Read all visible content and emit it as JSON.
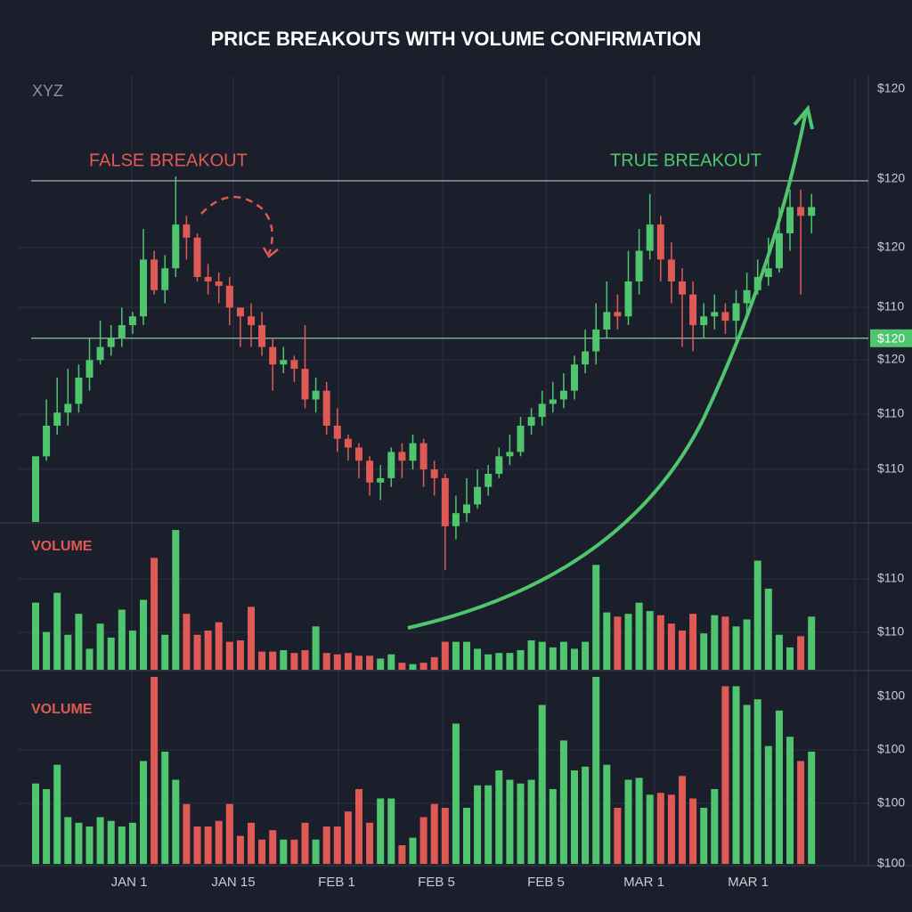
{
  "chart_data": {
    "type": "candlestick",
    "title": "PRICE BREAKOUTS WITH VOLUME CONFIRMATION",
    "symbol": "XYZ",
    "annotations": [
      "FALSE BREAKOUT",
      "TRUE BREAKOUT"
    ],
    "x_labels": [
      "JAN 1",
      "JAN 15",
      "FEB 1",
      "FEB 5",
      "FEB 5",
      "MAR 1",
      "MAR 1"
    ],
    "y_axis_labels": [
      "$120",
      "$120",
      "$120",
      "$110",
      "$120",
      "$110",
      "$110",
      "$110",
      "$110",
      "$100",
      "$100",
      "$100",
      "$100"
    ],
    "levels": [
      78,
      42
    ],
    "level_label": "$120",
    "up_color": "#4fc56e",
    "down_color": "#e05a55",
    "ylim": [
      -11,
      100
    ],
    "open": [
      0,
      15,
      22,
      25,
      27,
      33,
      37,
      40,
      42,
      45,
      47,
      60,
      53,
      58,
      68,
      65,
      56,
      55,
      54,
      49,
      47,
      45,
      40,
      36,
      37,
      35,
      28,
      30,
      22,
      19,
      17,
      14,
      9,
      10,
      16,
      14,
      18,
      12,
      10,
      -1,
      2,
      4,
      8,
      11,
      15,
      16,
      22,
      24,
      27,
      28,
      30,
      36,
      39,
      44,
      48,
      47,
      55,
      62,
      68,
      60,
      55,
      52,
      45,
      47,
      48,
      46,
      50,
      53,
      56,
      58,
      66,
      72,
      70
    ],
    "high": [
      15,
      28,
      33,
      35,
      36,
      42,
      46,
      45,
      49,
      48,
      67,
      62,
      61,
      79,
      70,
      66,
      59,
      57,
      56,
      48,
      50,
      48,
      42,
      40,
      38,
      45,
      33,
      32,
      26,
      20,
      18,
      15,
      13,
      17,
      18,
      20,
      19,
      14,
      11,
      6,
      10,
      12,
      13,
      17,
      20,
      24,
      26,
      30,
      32,
      34,
      38,
      44,
      50,
      55,
      52,
      62,
      67,
      75,
      70,
      64,
      58,
      55,
      50,
      52,
      50,
      53,
      57,
      60,
      65,
      72,
      76,
      76,
      75
    ],
    "low": [
      0,
      14,
      20,
      22,
      25,
      30,
      36,
      38,
      40,
      43,
      45,
      52,
      50,
      56,
      60,
      55,
      52,
      50,
      45,
      40,
      40,
      38,
      30,
      34,
      32,
      26,
      25,
      20,
      16,
      14,
      10,
      6,
      5,
      8,
      10,
      12,
      8,
      6,
      -11,
      -4,
      0,
      3,
      6,
      10,
      13,
      15,
      20,
      22,
      25,
      26,
      28,
      34,
      36,
      42,
      44,
      45,
      52,
      60,
      55,
      50,
      40,
      39,
      42,
      44,
      43,
      40,
      47,
      52,
      54,
      57,
      62,
      52,
      66
    ],
    "close": [
      15,
      22,
      25,
      27,
      33,
      37,
      40,
      42,
      45,
      47,
      60,
      53,
      58,
      68,
      65,
      56,
      55,
      54,
      49,
      47,
      45,
      40,
      36,
      37,
      35,
      28,
      30,
      22,
      19,
      17,
      14,
      9,
      10,
      16,
      14,
      18,
      12,
      10,
      -1,
      2,
      4,
      8,
      11,
      15,
      16,
      22,
      24,
      27,
      28,
      30,
      36,
      39,
      44,
      48,
      47,
      55,
      62,
      68,
      60,
      55,
      52,
      45,
      47,
      48,
      46,
      50,
      53,
      56,
      58,
      66,
      72,
      70,
      72
    ],
    "volume_ylim": [
      0,
      100
    ],
    "volume": [
      {
        "name": "VOLUME",
        "values": [
          48,
          27,
          55,
          25,
          40,
          15,
          33,
          23,
          43,
          28,
          50,
          80,
          25,
          100,
          40,
          25,
          28,
          34,
          20,
          21,
          45,
          13,
          13,
          14,
          12,
          14,
          31,
          12,
          11,
          12,
          10,
          10,
          8,
          11,
          5,
          4,
          5,
          9,
          20,
          20,
          20,
          15,
          11,
          12,
          12,
          14,
          21,
          20,
          16,
          20,
          15,
          20,
          75,
          41,
          38,
          40,
          48,
          42,
          39,
          33,
          28,
          40,
          26,
          39,
          38,
          31,
          36,
          78,
          58,
          25,
          16,
          24,
          38
        ]
      },
      {
        "name": "VOLUME",
        "values": [
          43,
          40,
          53,
          25,
          22,
          20,
          25,
          23,
          20,
          22,
          55,
          100,
          60,
          45,
          32,
          20,
          20,
          23,
          32,
          15,
          22,
          13,
          18,
          13,
          13,
          22,
          13,
          20,
          20,
          28,
          40,
          22,
          35,
          35,
          10,
          14,
          25,
          32,
          30,
          75,
          30,
          42,
          42,
          50,
          45,
          43,
          45,
          85,
          40,
          66,
          50,
          52,
          100,
          53,
          30,
          45,
          46,
          37,
          38,
          37,
          47,
          35,
          30,
          40,
          95,
          95,
          85,
          88,
          63,
          82,
          68,
          55,
          60
        ]
      }
    ]
  }
}
